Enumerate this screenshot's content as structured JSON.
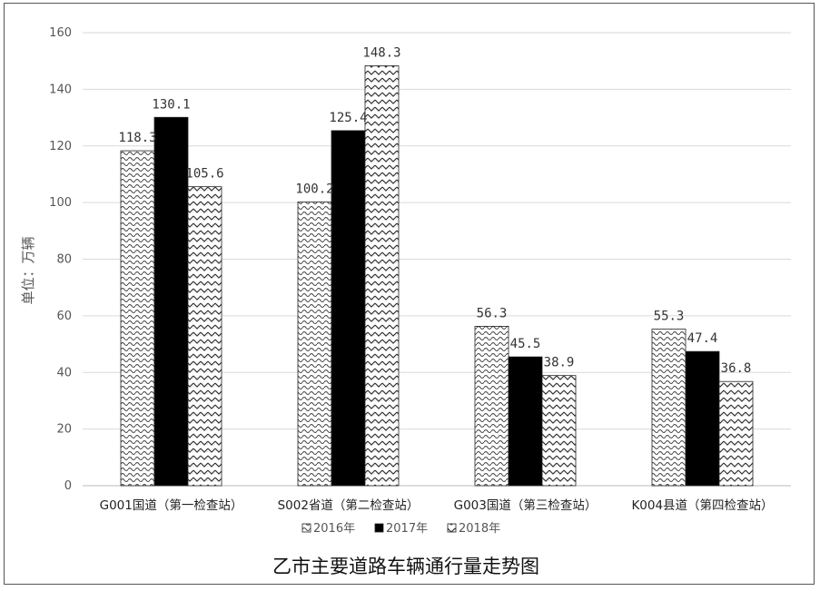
{
  "chart_data": {
    "type": "bar",
    "title": "乙市主要道路车辆通行量走势图",
    "ylabel": "单位：万辆",
    "xlabel": "",
    "ylim": [
      0,
      160
    ],
    "yticks": [
      0,
      20,
      40,
      60,
      80,
      100,
      120,
      140,
      160
    ],
    "grid": true,
    "legend_position": "bottom",
    "categories": [
      "G001国道（第一检查站）",
      "S002省道（第二检查站）",
      "G003国道（第三检查站）",
      "K004县道（第四检查站）"
    ],
    "series": [
      {
        "name": "2016年",
        "values": [
          118.3,
          100.2,
          56.3,
          55.3
        ],
        "labels": [
          "118.3",
          "100.2",
          "56.3",
          "55.3"
        ],
        "pattern": "wave"
      },
      {
        "name": "2017年",
        "values": [
          130.1,
          125.4,
          45.5,
          47.4
        ],
        "labels": [
          "130.1",
          "125.4",
          "45.5",
          "47.4"
        ],
        "pattern": "solid-black"
      },
      {
        "name": "2018年",
        "values": [
          105.6,
          148.3,
          38.9,
          36.8
        ],
        "labels": [
          "105.6",
          "148.3",
          "38.9",
          "36.8"
        ],
        "pattern": "zigzag"
      }
    ]
  }
}
